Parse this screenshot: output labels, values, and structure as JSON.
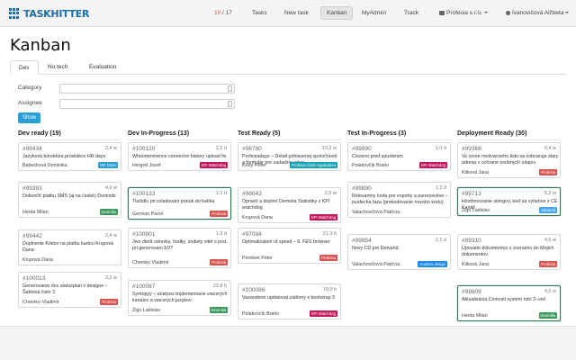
{
  "app": {
    "logo_text": "TASKHITTER"
  },
  "nav": {
    "counter_current": "10",
    "counter_sep": " / ",
    "counter_total": "17",
    "items": [
      "Tasks",
      "New task",
      "Kanban",
      "MyAdmin",
      "Track"
    ],
    "company": "Profesia s.r.o.",
    "user": "Ivanovičová Alžbeta"
  },
  "page": {
    "title": "Kanban"
  },
  "tabs": [
    "Dev",
    "No tech",
    "Evaluation"
  ],
  "filters": {
    "category_label": "Category",
    "assignee_label": "Assignee",
    "show_label": "Show"
  },
  "tag_colors": {
    "HR Team": "#2a9fd6",
    "KPI Watchdog": "#c2185b",
    "Profesia": "#d9534f",
    "Dvomilia": "#3c9a5f",
    "Profesia Cloth Application": "#17a2b8",
    "Custom design": "#1e88e5",
    "Intrasoft": "#42a5f5"
  },
  "columns": [
    {
      "title": "Dev ready (19)",
      "cards": [
        {
          "id": "#99434",
          "est": "2,4 w",
          "text": "Jazyková korektúra produktov HR days",
          "assignee": "Babočková Dominika",
          "tag": "HR Team"
        },
        {
          "id": "#99393",
          "est": "4,9 w",
          "text": "Dokončiť platbu SMS (aj na české) Dominiki",
          "assignee": "Herda Milan",
          "tag": "Dvomilia"
        },
        {
          "id": "#99442",
          "est": "2,4 w",
          "text": "Doplnenie Kódov na platbu kartou Krupová Dana",
          "assignee": "Krupová Dana",
          "tag": ""
        },
        {
          "id": "#100013",
          "est": "3,2 w",
          "text": "Generovanie doc statusplan v designe – Šablona čislo 3",
          "assignee": "Chrenko Vladimír",
          "tag": "Profesia"
        }
      ]
    },
    {
      "title": "Dev In-Progress (13)",
      "cards": [
        {
          "id": "#100120",
          "est": "2,2 d",
          "text": "Whoommmence connector history upload fix",
          "assignee": "Hergott Jozef",
          "tag": "KPI Watchdog"
        },
        {
          "id": "#100133",
          "est": "1,1 d",
          "text": "Tlačidlo pri zvladovaní ponuk do balíka",
          "assignee": "German Pavol",
          "tag": "Profesia"
        },
        {
          "id": "#100001",
          "est": "1,0 d",
          "text": "Jwo dierit odrezky, hodky, zodiety vitet s pod. pri generovaní EV?",
          "assignee": "Chrenko Vladimír",
          "tag": "Profesia"
        },
        {
          "id": "#100087",
          "est": "23,8 h",
          "text": "Syntopyy – analyza implementacie viacerych kanalov a viacerych jazykov",
          "assignee": "Žigo Ladislav",
          "tag": "Dvomilia"
        }
      ]
    },
    {
      "title": "Test Ready (5)",
      "cards": [
        {
          "id": "#98780",
          "est": "10,3 w",
          "text": "Profesiadays – Detail prihlasenej spoločnosti a formulár pre zadadzie údaje",
          "assignee": "Krúty Peter",
          "tag": "Profesia Cloth Application"
        },
        {
          "id": "#98043",
          "est": "2,5 w",
          "text": "Opraviť a doplniť Demolia Štatistiky v KPI watchdog",
          "assignee": "Krupová Dana",
          "tag": "KPI Watchdog"
        },
        {
          "id": "#97094",
          "est": "21,3 h",
          "text": "Optimalization of speed – 6. FES browser",
          "assignee": "Porebek Peter",
          "tag": "Profesia"
        },
        {
          "id": "#100086",
          "est": "19,9 h",
          "text": "Vasoodene updatovat zablony s bootstrap 3",
          "assignee": "Polakovčík Braňo",
          "tag": "KPI Watchdog"
        }
      ]
    },
    {
      "title": "Test In-Progress (3)",
      "cards": [
        {
          "id": "#99890",
          "est": "1,0 d",
          "text": "Cisovno pred spustenim",
          "assignee": "Polakovčík Braňo",
          "tag": "KPI Watchdog"
        },
        {
          "id": "#99890",
          "est": "1,2 d",
          "text": "Relevantny kodu pre exporty a parenovstve – pusfecha faza (prekodovanie novoho kodu)",
          "assignee": "Valachovičová Patrícia",
          "tag": ""
        },
        {
          "id": "#99854",
          "est": "2,1 d",
          "text": "Novy CD pre Detvand",
          "assignee": "Valachovičová Patrícia",
          "tag": "Custom design"
        }
      ]
    },
    {
      "title": "Deployment Ready (30)",
      "cards": [
        {
          "id": "#99368",
          "est": "6,4 w",
          "text": "Vo vzore motivacneho listu sa zobrazuje stary adresa v ochrane osobnych udajov",
          "assignee": "Kliková Jana",
          "tag": "Profesia"
        },
        {
          "id": "#99713",
          "est": "5,2 w",
          "text": "Hzodonovanie stringov, keď sa vytiahne z CE Kanáli",
          "assignee": "Žigo Ladislav",
          "tag": "Intrasoft"
        },
        {
          "id": "#99310",
          "est": "4,5 w",
          "text": "Upozatie dokumentov z zoznamu do Mojich dokumentov",
          "assignee": "Kliková Jana",
          "tag": "Profesia"
        },
        {
          "id": "#99809",
          "est": "4,2 w",
          "text": "Aktualizácia Činnosti systém robí 2–več",
          "assignee": "Herda Milan",
          "tag": "Dvomilia"
        }
      ]
    }
  ]
}
